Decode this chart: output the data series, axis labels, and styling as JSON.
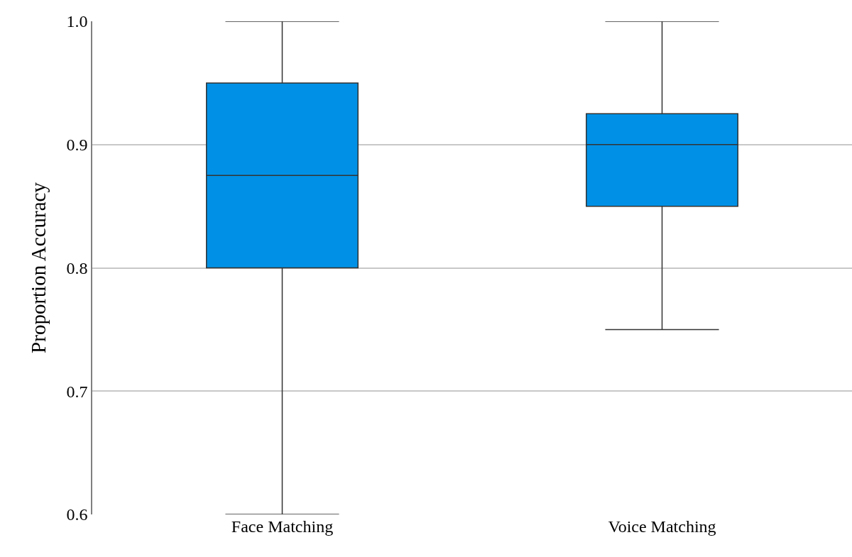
{
  "chart_data": {
    "type": "box",
    "ylabel": "Proportion Accuracy",
    "categories": [
      "Face Matching",
      "Voice Matching"
    ],
    "series": [
      {
        "color": "#0091e6",
        "boxes": [
          {
            "low": 0.6,
            "q1": 0.8,
            "median": 0.875,
            "q3": 0.95,
            "high": 1.0
          },
          {
            "low": 0.75,
            "q1": 0.85,
            "median": 0.9,
            "q3": 0.925,
            "high": 1.0
          }
        ]
      }
    ],
    "ylim": [
      0.6,
      1.0
    ],
    "yticks": [
      {
        "value": 0.6,
        "label": "0.6"
      },
      {
        "value": 0.7,
        "label": "0.7"
      },
      {
        "value": 0.8,
        "label": "0.8"
      },
      {
        "value": 0.9,
        "label": "0.9"
      },
      {
        "value": 1.0,
        "label": "1.0"
      }
    ],
    "grid": "y"
  }
}
